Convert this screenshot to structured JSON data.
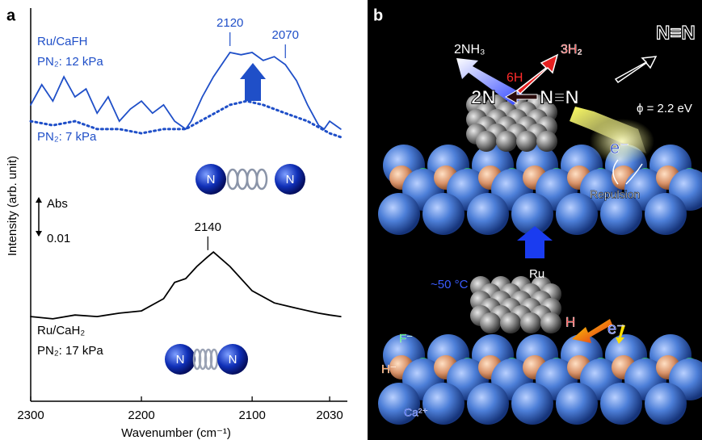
{
  "chart_data": {
    "type": "line",
    "panel_label": "a",
    "xlabel": "Wavenumber (cm⁻¹)",
    "ylabel": "Intensity (arb. unit)",
    "xlim": [
      2300,
      2014
    ],
    "xticks": [
      2300,
      2200,
      2100,
      2030
    ],
    "ylim": [
      0,
      0.1
    ],
    "scalebar": {
      "value": 0.01,
      "unit": "Abs"
    },
    "series": [
      {
        "sample": "Ru/CaFH",
        "name": "PN₂: 12 kPa",
        "color": "#1f4fc8",
        "style": "solid",
        "peaks": [
          2120,
          2070
        ],
        "x": [
          2300,
          2290,
          2280,
          2270,
          2260,
          2250,
          2240,
          2230,
          2220,
          2210,
          2200,
          2190,
          2180,
          2170,
          2160,
          2155,
          2145,
          2135,
          2125,
          2120,
          2110,
          2100,
          2090,
          2080,
          2070,
          2060,
          2050,
          2040,
          2035,
          2030,
          2020
        ],
        "values": [
          0.0745,
          0.0798,
          0.0755,
          0.0819,
          0.0766,
          0.0787,
          0.0723,
          0.0766,
          0.0702,
          0.0734,
          0.0755,
          0.0723,
          0.0745,
          0.0702,
          0.0681,
          0.0702,
          0.0766,
          0.0819,
          0.0862,
          0.0883,
          0.0877,
          0.0883,
          0.0862,
          0.0872,
          0.0851,
          0.0809,
          0.0745,
          0.0691,
          0.0681,
          0.0702,
          0.0681
        ]
      },
      {
        "name": "PN₂: 7 kPa",
        "color": "#1f4fc8",
        "style": "dotted",
        "x": [
          2300,
          2280,
          2260,
          2240,
          2220,
          2200,
          2180,
          2160,
          2140,
          2120,
          2105,
          2090,
          2070,
          2050,
          2030,
          2020
        ],
        "values": [
          0.0702,
          0.0691,
          0.0702,
          0.0681,
          0.0681,
          0.067,
          0.0681,
          0.0681,
          0.0713,
          0.0745,
          0.0755,
          0.0745,
          0.0723,
          0.0702,
          0.067,
          0.066
        ]
      },
      {
        "sample": "Ru/CaH₂",
        "name": "PN₂: 17 kPa",
        "color": "#000000",
        "style": "solid",
        "peaks": [
          2140
        ],
        "x": [
          2300,
          2280,
          2260,
          2240,
          2220,
          2200,
          2180,
          2170,
          2160,
          2150,
          2140,
          2135,
          2120,
          2100,
          2080,
          2060,
          2040,
          2030,
          2020
        ],
        "values": [
          0.0187,
          0.0181,
          0.0191,
          0.0187,
          0.0196,
          0.0202,
          0.0234,
          0.0277,
          0.0287,
          0.0319,
          0.0345,
          0.0357,
          0.0319,
          0.0255,
          0.0223,
          0.0209,
          0.0196,
          0.0191,
          0.0187
        ]
      }
    ]
  },
  "molecule_labels": [
    "N",
    "N",
    "N",
    "N"
  ],
  "diagram": {
    "panel_label": "b",
    "nh3": "2NH₃",
    "h2": "3H₂",
    "h6": "6H",
    "n2_atoms": "2N",
    "n2_adsorbed": "N≡N",
    "n2_gas": "N≡N",
    "work_function": "ϕ = 2.2 eV",
    "electron_top": "e⁻",
    "repulsion": "Repulsion",
    "ru": "Ru",
    "temperature": "~50 °C",
    "hydrogen": "H",
    "electron_bottom": "e⁻",
    "fluoride": "F⁻",
    "hydride": "H⁻",
    "calcium": "Ca²⁺"
  }
}
